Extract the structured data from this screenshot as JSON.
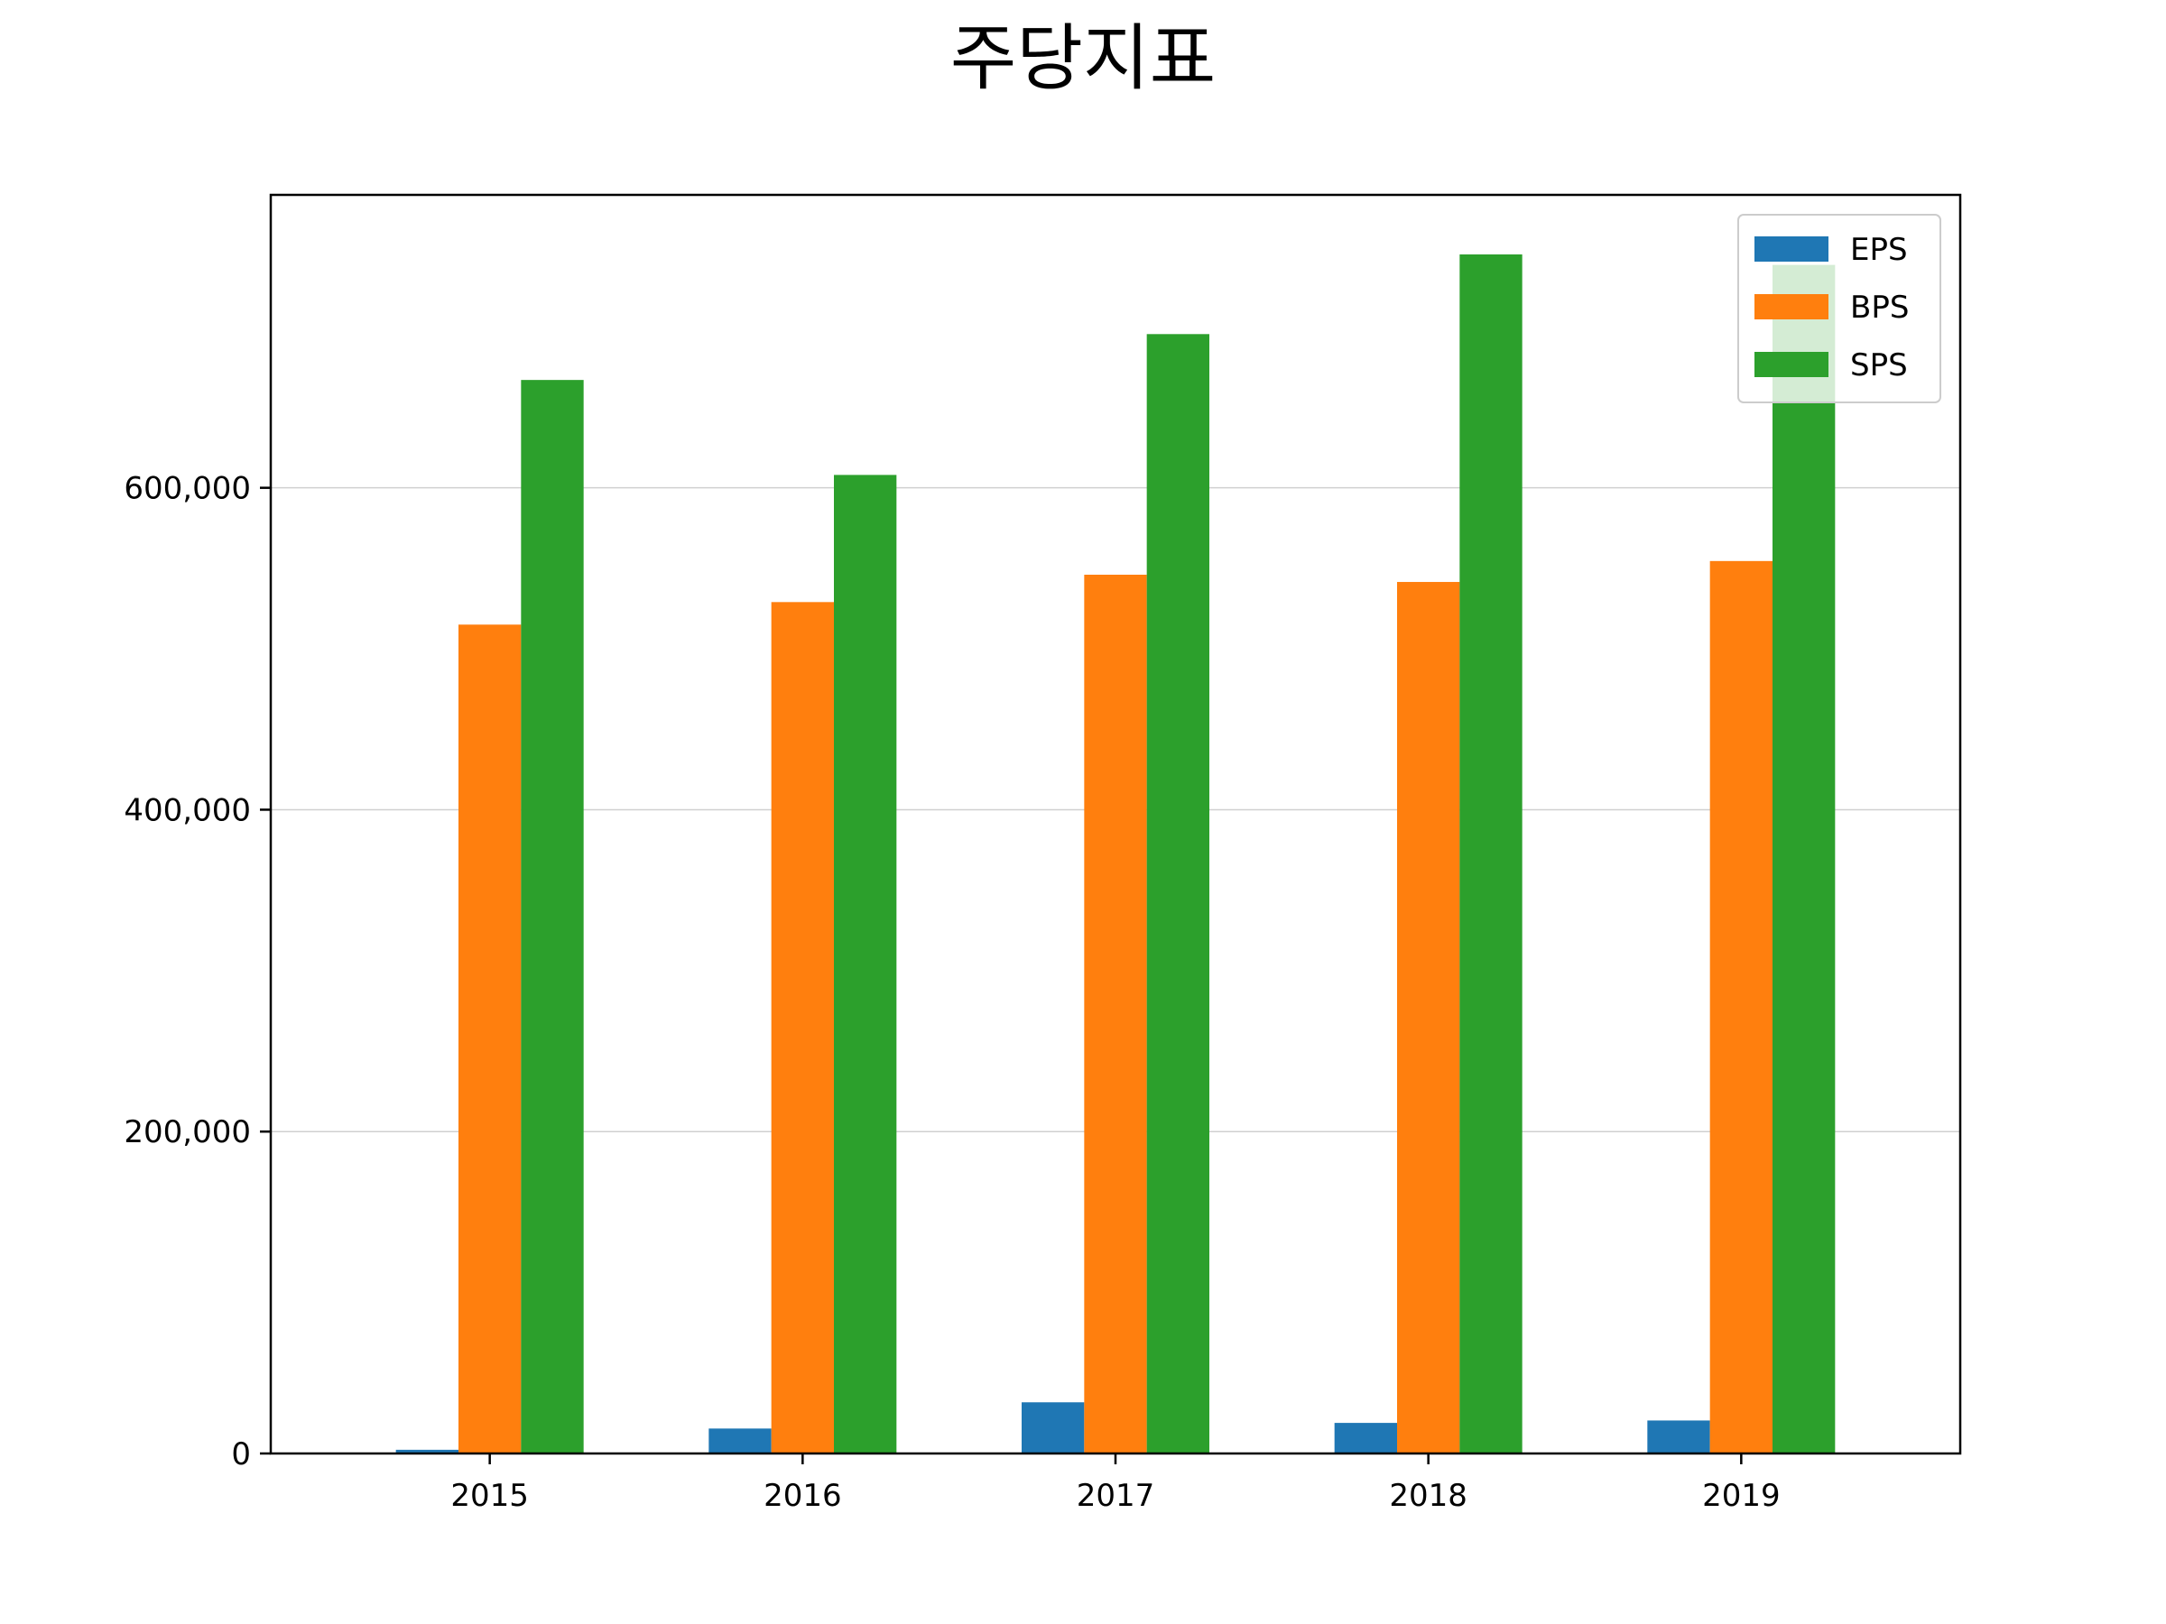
{
  "chart_data": {
    "type": "bar",
    "title": "주당지표",
    "xlabel": "",
    "ylabel": "",
    "categories": [
      "2015",
      "2016",
      "2017",
      "2018",
      "2019"
    ],
    "series": [
      {
        "name": "EPS",
        "color": "#1f77b4",
        "values": [
          2300,
          15500,
          31800,
          19000,
          20500
        ]
      },
      {
        "name": "BPS",
        "color": "#ff7f0e",
        "values": [
          515000,
          529000,
          546000,
          541500,
          554500
        ]
      },
      {
        "name": "SPS",
        "color": "#2ca02c",
        "values": [
          667000,
          608000,
          695500,
          745000,
          738500
        ]
      }
    ],
    "ylim": [
      0,
      782000
    ],
    "yticks": [
      0,
      200000,
      400000,
      600000
    ],
    "ytick_labels": [
      "0",
      "200,000",
      "400,000",
      "600,000"
    ],
    "grid": "y",
    "legend_position": "top-right"
  }
}
